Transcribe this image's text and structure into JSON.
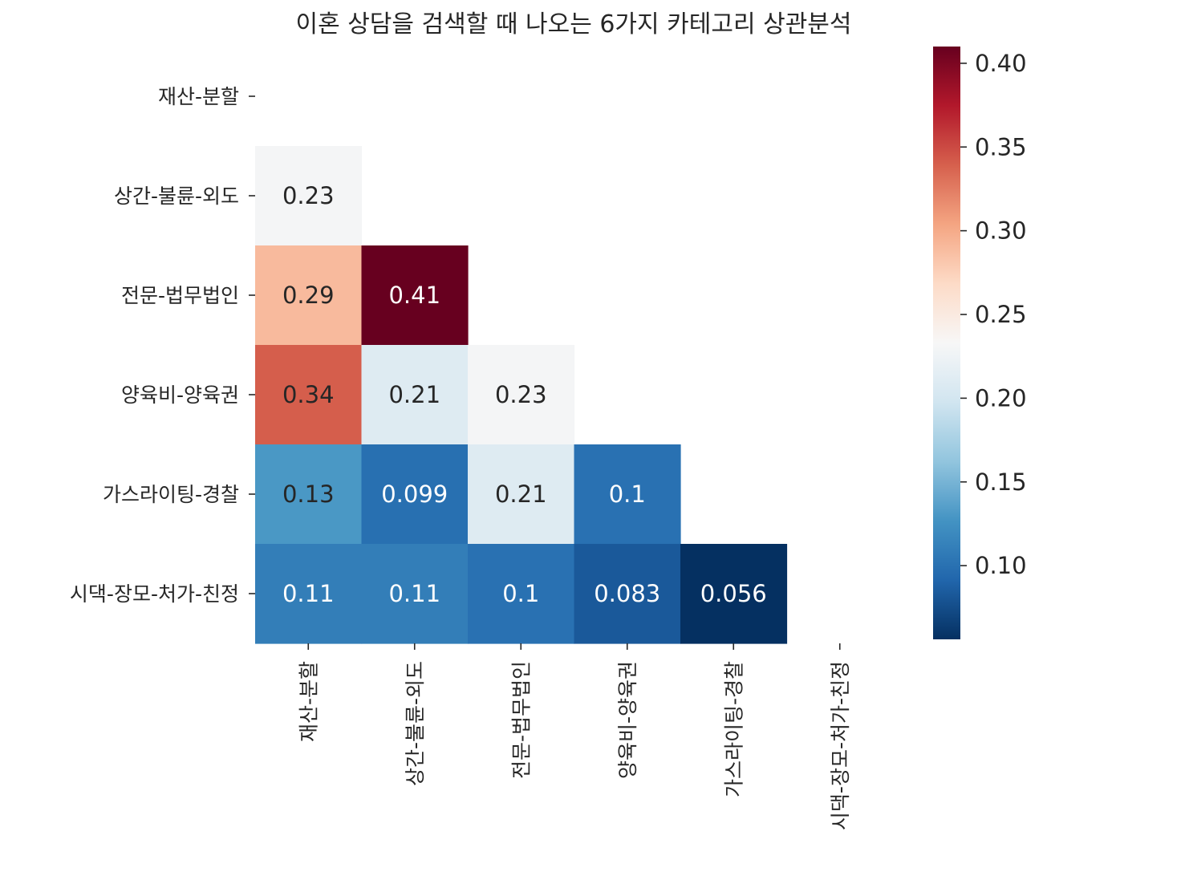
{
  "chart_data": {
    "type": "heatmap",
    "title": "이혼 상담을 검색할 때 나오는 6가지 카테고리 상관분석",
    "categories": [
      "재산-분할",
      "상간-불륜-외도",
      "전문-법무법인",
      "양육비-양육권",
      "가스라이팅-경찰",
      "시댁-장모-처가-친정"
    ],
    "mask": "upper-triangle-including-diagonal",
    "cells": [
      {
        "row": 1,
        "col": 0,
        "value": 0.23,
        "label": "0.23"
      },
      {
        "row": 2,
        "col": 0,
        "value": 0.29,
        "label": "0.29"
      },
      {
        "row": 2,
        "col": 1,
        "value": 0.41,
        "label": "0.41"
      },
      {
        "row": 3,
        "col": 0,
        "value": 0.34,
        "label": "0.34"
      },
      {
        "row": 3,
        "col": 1,
        "value": 0.21,
        "label": "0.21"
      },
      {
        "row": 3,
        "col": 2,
        "value": 0.23,
        "label": "0.23"
      },
      {
        "row": 4,
        "col": 0,
        "value": 0.13,
        "label": "0.13"
      },
      {
        "row": 4,
        "col": 1,
        "value": 0.099,
        "label": "0.099"
      },
      {
        "row": 4,
        "col": 2,
        "value": 0.21,
        "label": "0.21"
      },
      {
        "row": 4,
        "col": 3,
        "value": 0.1,
        "label": "0.1"
      },
      {
        "row": 5,
        "col": 0,
        "value": 0.11,
        "label": "0.11"
      },
      {
        "row": 5,
        "col": 1,
        "value": 0.11,
        "label": "0.11"
      },
      {
        "row": 5,
        "col": 2,
        "value": 0.1,
        "label": "0.1"
      },
      {
        "row": 5,
        "col": 3,
        "value": 0.083,
        "label": "0.083"
      },
      {
        "row": 5,
        "col": 4,
        "value": 0.056,
        "label": "0.056"
      }
    ],
    "colorbar": {
      "colormap": "RdBu_r",
      "vmin": 0.056,
      "vmax": 0.41,
      "ticks": [
        {
          "value": 0.1,
          "label": "0.10"
        },
        {
          "value": 0.15,
          "label": "0.15"
        },
        {
          "value": 0.2,
          "label": "0.20"
        },
        {
          "value": 0.25,
          "label": "0.25"
        },
        {
          "value": 0.3,
          "label": "0.30"
        },
        {
          "value": 0.35,
          "label": "0.35"
        },
        {
          "value": 0.4,
          "label": "0.40"
        }
      ]
    }
  }
}
